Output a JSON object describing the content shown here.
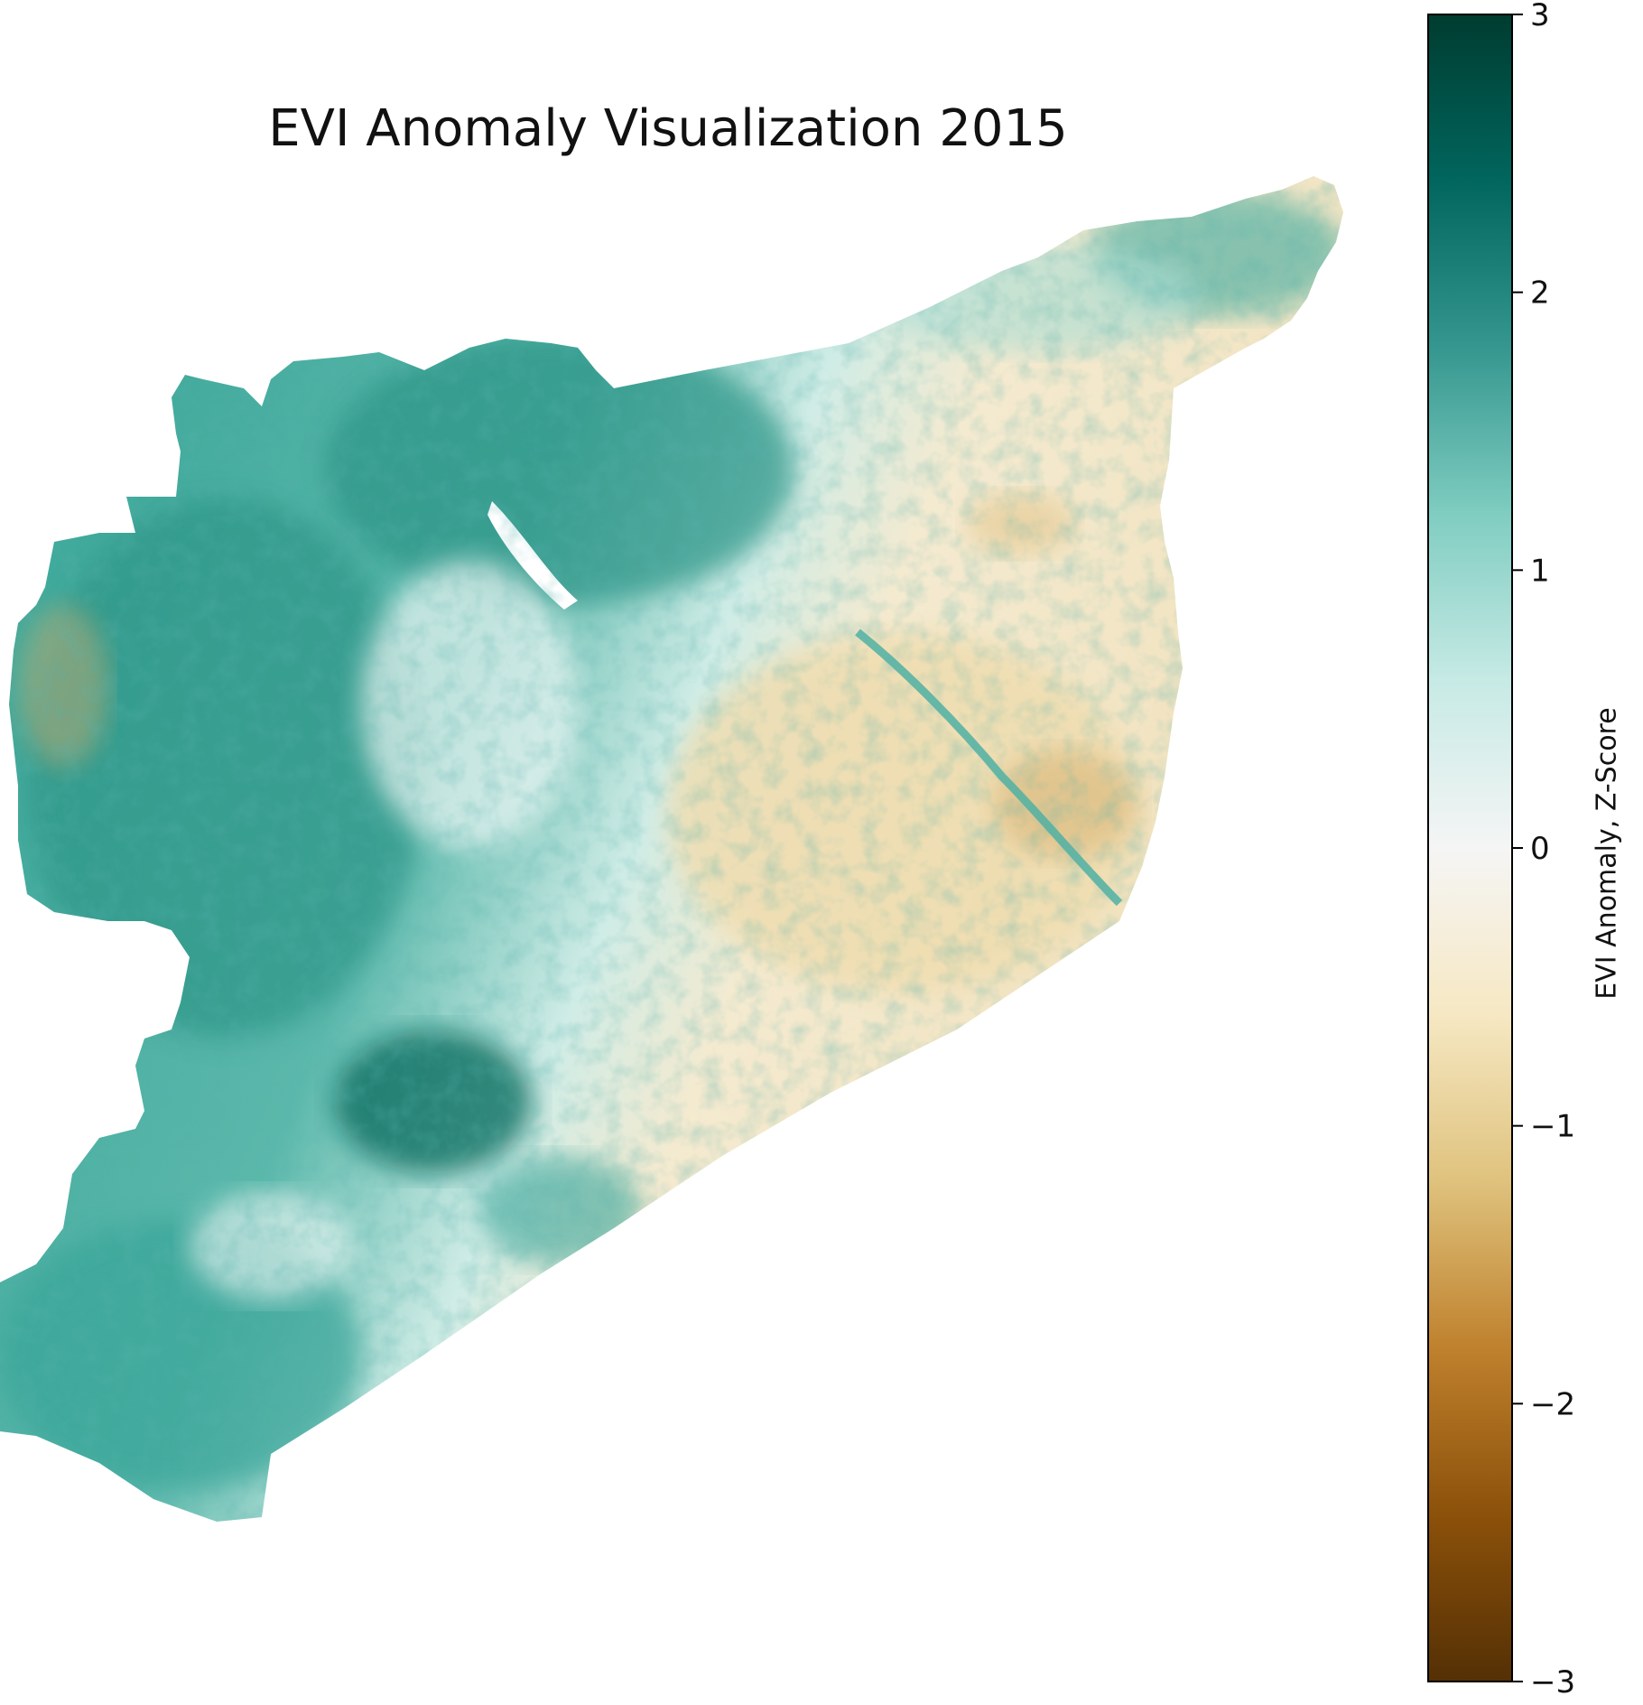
{
  "title": "EVI Anomaly Visualization 2015",
  "colorbar": {
    "label": "EVI Anomaly, Z-Score",
    "min": -3,
    "max": 3,
    "ticks": [
      {
        "value": 3,
        "label": "3"
      },
      {
        "value": 2,
        "label": "2"
      },
      {
        "value": 1,
        "label": "1"
      },
      {
        "value": 0,
        "label": "0"
      },
      {
        "value": -1,
        "label": "−1"
      },
      {
        "value": -2,
        "label": "−2"
      },
      {
        "value": -3,
        "label": "−3"
      }
    ],
    "colormap": "BrBG",
    "colors": [
      "#543005",
      "#8c510a",
      "#bf812d",
      "#dfc27d",
      "#f6e8c3",
      "#f5f5f5",
      "#c7eae5",
      "#80cdc1",
      "#35978f",
      "#01665e",
      "#003c30"
    ]
  },
  "map": {
    "region": "Syria",
    "wet_color": "#3aa69a",
    "dry_color": "#f1e2bb",
    "neutral_color": "#e8f5f2"
  }
}
